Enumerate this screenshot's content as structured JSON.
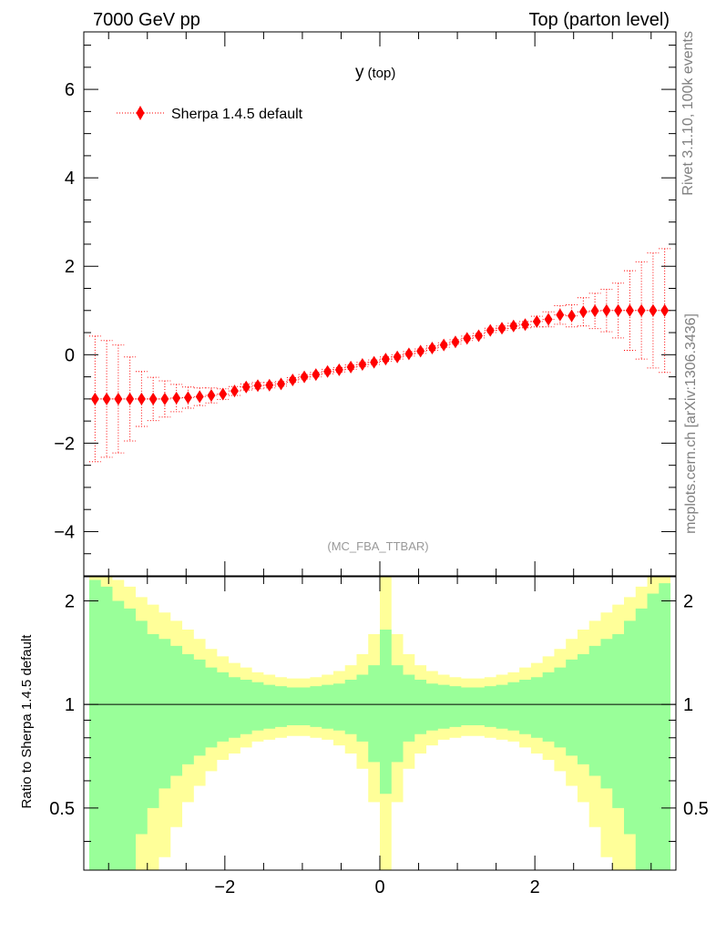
{
  "header": {
    "left": "7000 GeV pp",
    "right": "Top (parton level)"
  },
  "side": {
    "rivet": "Rivet 3.1.10,  100k events",
    "mcplots": "mcplots.cern.ch [arXiv:1306.3436]"
  },
  "colors": {
    "series": "#ff0000",
    "band_inner": "#99ff99",
    "band_outer": "#ffff99"
  },
  "chart_data": [
    {
      "type": "scatter",
      "title_main": "y",
      "title_sub": "(top)",
      "watermark": "(MC_FBA_TTBAR)",
      "xlim": [
        -3.82,
        3.82
      ],
      "ylim": [
        -5.0,
        7.3
      ],
      "yticks": [
        -4,
        -2,
        0,
        2,
        4,
        6
      ],
      "ytick_labels": [
        "−4",
        "−2",
        "0",
        "2",
        "4",
        "6"
      ],
      "legend_position": "top-left",
      "series": [
        {
          "name": "Sherpa 1.4.5 default",
          "marker": "diamond",
          "line": "dotted",
          "bin_halfwidth": 0.075,
          "x": [
            -3.675,
            -3.525,
            -3.375,
            -3.225,
            -3.075,
            -2.925,
            -2.775,
            -2.625,
            -2.475,
            -2.325,
            -2.175,
            -2.025,
            -1.875,
            -1.725,
            -1.575,
            -1.425,
            -1.275,
            -1.125,
            -0.975,
            -0.825,
            -0.675,
            -0.525,
            -0.375,
            -0.225,
            -0.075,
            0.075,
            0.225,
            0.375,
            0.525,
            0.675,
            0.825,
            0.975,
            1.125,
            1.275,
            1.425,
            1.575,
            1.725,
            1.875,
            2.025,
            2.175,
            2.325,
            2.475,
            2.625,
            2.775,
            2.925,
            3.075,
            3.225,
            3.375,
            3.525,
            3.675
          ],
          "y": [
            -1.0,
            -1.0,
            -1.0,
            -1.0,
            -1.0,
            -1.0,
            -1.0,
            -0.98,
            -0.97,
            -0.95,
            -0.92,
            -0.89,
            -0.82,
            -0.73,
            -0.7,
            -0.69,
            -0.66,
            -0.57,
            -0.5,
            -0.45,
            -0.38,
            -0.34,
            -0.28,
            -0.22,
            -0.17,
            -0.1,
            -0.05,
            0.02,
            0.08,
            0.15,
            0.22,
            0.29,
            0.37,
            0.43,
            0.55,
            0.6,
            0.65,
            0.68,
            0.75,
            0.8,
            0.9,
            0.88,
            0.97,
            0.99,
            1.0,
            1.0,
            1.0,
            1.0,
            1.0,
            1.0
          ],
          "err": [
            1.42,
            1.32,
            1.22,
            0.95,
            0.62,
            0.49,
            0.41,
            0.31,
            0.24,
            0.2,
            0.17,
            0.12,
            0.1,
            0.07,
            0.07,
            0.06,
            0.05,
            0.05,
            0.05,
            0.05,
            0.05,
            0.05,
            0.05,
            0.05,
            0.05,
            0.05,
            0.05,
            0.05,
            0.05,
            0.05,
            0.05,
            0.05,
            0.05,
            0.05,
            0.05,
            0.05,
            0.06,
            0.07,
            0.12,
            0.17,
            0.21,
            0.25,
            0.32,
            0.4,
            0.48,
            0.62,
            0.9,
            1.1,
            1.3,
            1.4
          ]
        }
      ]
    },
    {
      "type": "area",
      "ylabel": "Ratio to Sherpa 1.4.5 default",
      "ylim": [
        0.33,
        2.35
      ],
      "xlim": [
        -3.82,
        3.82
      ],
      "yscale": "log",
      "yticks": [
        0.5,
        1,
        2
      ],
      "ytick_labels": [
        "0.5",
        "1",
        "2"
      ],
      "xticks": [
        -2,
        0,
        2
      ],
      "xtick_labels": [
        "−2",
        "0",
        "2"
      ],
      "reference_line": 1,
      "bin_edges_start": -3.75,
      "bin_width": 0.15,
      "band_inner_up": [
        2.3,
        2.2,
        2.0,
        1.9,
        1.75,
        1.6,
        1.55,
        1.48,
        1.4,
        1.35,
        1.28,
        1.24,
        1.2,
        1.18,
        1.16,
        1.14,
        1.13,
        1.12,
        1.12,
        1.13,
        1.14,
        1.15,
        1.18,
        1.22,
        1.3,
        1.65,
        1.3,
        1.22,
        1.18,
        1.15,
        1.14,
        1.13,
        1.12,
        1.12,
        1.13,
        1.14,
        1.16,
        1.18,
        1.2,
        1.24,
        1.28,
        1.35,
        1.4,
        1.48,
        1.55,
        1.6,
        1.75,
        1.9,
        2.1,
        2.25
      ],
      "band_inner_down": [
        0.3,
        0.3,
        0.3,
        0.3,
        0.42,
        0.5,
        0.57,
        0.62,
        0.67,
        0.71,
        0.75,
        0.78,
        0.8,
        0.82,
        0.84,
        0.85,
        0.86,
        0.87,
        0.87,
        0.86,
        0.85,
        0.84,
        0.82,
        0.78,
        0.68,
        0.55,
        0.68,
        0.78,
        0.82,
        0.84,
        0.85,
        0.86,
        0.87,
        0.87,
        0.86,
        0.85,
        0.84,
        0.82,
        0.8,
        0.78,
        0.75,
        0.71,
        0.67,
        0.62,
        0.57,
        0.5,
        0.42,
        0.3,
        0.3,
        0.3
      ],
      "band_outer_up": [
        2.6,
        2.5,
        2.3,
        2.2,
        2.05,
        1.95,
        1.85,
        1.75,
        1.65,
        1.55,
        1.45,
        1.38,
        1.32,
        1.28,
        1.24,
        1.22,
        1.2,
        1.19,
        1.19,
        1.2,
        1.22,
        1.25,
        1.3,
        1.4,
        1.6,
        2.5,
        1.6,
        1.4,
        1.3,
        1.25,
        1.22,
        1.2,
        1.19,
        1.19,
        1.2,
        1.22,
        1.24,
        1.28,
        1.32,
        1.38,
        1.45,
        1.55,
        1.65,
        1.75,
        1.85,
        1.95,
        2.05,
        2.2,
        2.5,
        2.6
      ],
      "band_outer_down": [
        0.3,
        0.3,
        0.3,
        0.3,
        0.3,
        0.3,
        0.36,
        0.44,
        0.52,
        0.58,
        0.64,
        0.69,
        0.72,
        0.75,
        0.78,
        0.79,
        0.8,
        0.81,
        0.81,
        0.8,
        0.79,
        0.76,
        0.72,
        0.65,
        0.52,
        0.3,
        0.52,
        0.65,
        0.72,
        0.76,
        0.79,
        0.8,
        0.81,
        0.81,
        0.8,
        0.79,
        0.78,
        0.75,
        0.72,
        0.69,
        0.64,
        0.58,
        0.52,
        0.44,
        0.36,
        0.3,
        0.3,
        0.3,
        0.3,
        0.3
      ]
    }
  ]
}
